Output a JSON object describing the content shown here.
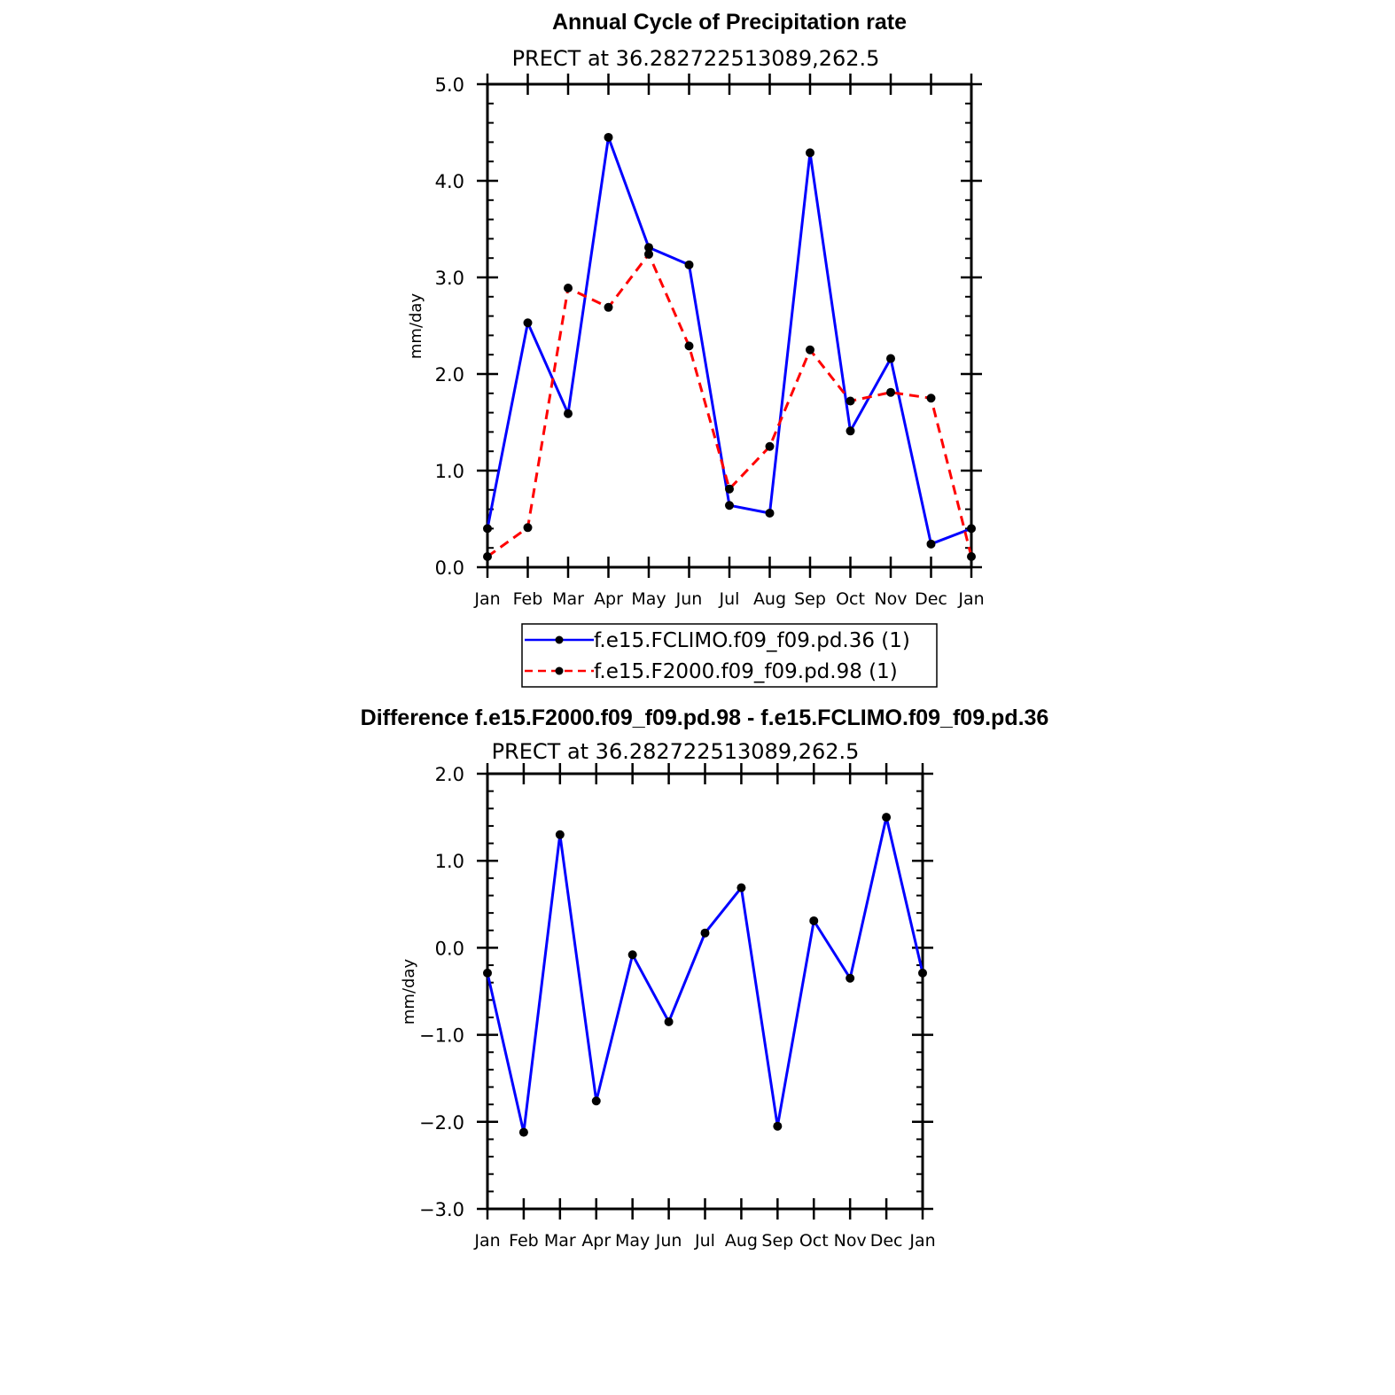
{
  "colors": {
    "series_a": "#0000ff",
    "series_b": "#ff0000",
    "marker": "#000000",
    "axes": "#000000"
  },
  "chart_data": [
    {
      "type": "line",
      "title": "Annual Cycle of Precipitation rate",
      "subtitle": "PRECT at 36.282722513089,262.5",
      "ylabel": "mm/day",
      "xlabel": "",
      "categories": [
        "Jan",
        "Feb",
        "Mar",
        "Apr",
        "May",
        "Jun",
        "Jul",
        "Aug",
        "Sep",
        "Oct",
        "Nov",
        "Dec",
        "Jan"
      ],
      "ylim": [
        0.0,
        5.0
      ],
      "yticks": [
        "0.0",
        "1.0",
        "2.0",
        "3.0",
        "4.0",
        "5.0"
      ],
      "series": [
        {
          "name": "f.e15.FCLIMO.f09_f09.pd.36 (1)",
          "style": "solid",
          "color": "#0000ff",
          "values": [
            0.4,
            2.53,
            1.59,
            4.45,
            3.31,
            3.13,
            0.64,
            0.56,
            4.29,
            1.41,
            2.16,
            0.24,
            0.4
          ]
        },
        {
          "name": "f.e15.F2000.f09_f09.pd.98 (1)",
          "style": "dashed",
          "color": "#ff0000",
          "values": [
            0.11,
            0.41,
            2.89,
            2.69,
            3.24,
            2.29,
            0.81,
            1.25,
            2.25,
            1.72,
            1.81,
            1.75,
            0.11
          ]
        }
      ],
      "legend": "below",
      "grid": false
    },
    {
      "type": "line",
      "title": "Difference f.e15.F2000.f09_f09.pd.98 - f.e15.FCLIMO.f09_f09.pd.36",
      "subtitle": "PRECT at 36.282722513089,262.5",
      "ylabel": "mm/day",
      "xlabel": "",
      "categories": [
        "Jan",
        "Feb",
        "Mar",
        "Apr",
        "May",
        "Jun",
        "Jul",
        "Aug",
        "Sep",
        "Oct",
        "Nov",
        "Dec",
        "Jan"
      ],
      "ylim": [
        -3.0,
        2.0
      ],
      "yticks": [
        "−3.0",
        "−2.0",
        "−1.0",
        "0.0",
        "1.0",
        "2.0"
      ],
      "series": [
        {
          "style": "solid",
          "color": "#0000ff",
          "values": [
            -0.29,
            -2.12,
            1.3,
            -1.76,
            -0.08,
            -0.85,
            0.17,
            0.69,
            -2.05,
            0.31,
            -0.35,
            1.5,
            -0.29
          ]
        }
      ],
      "grid": false
    }
  ]
}
